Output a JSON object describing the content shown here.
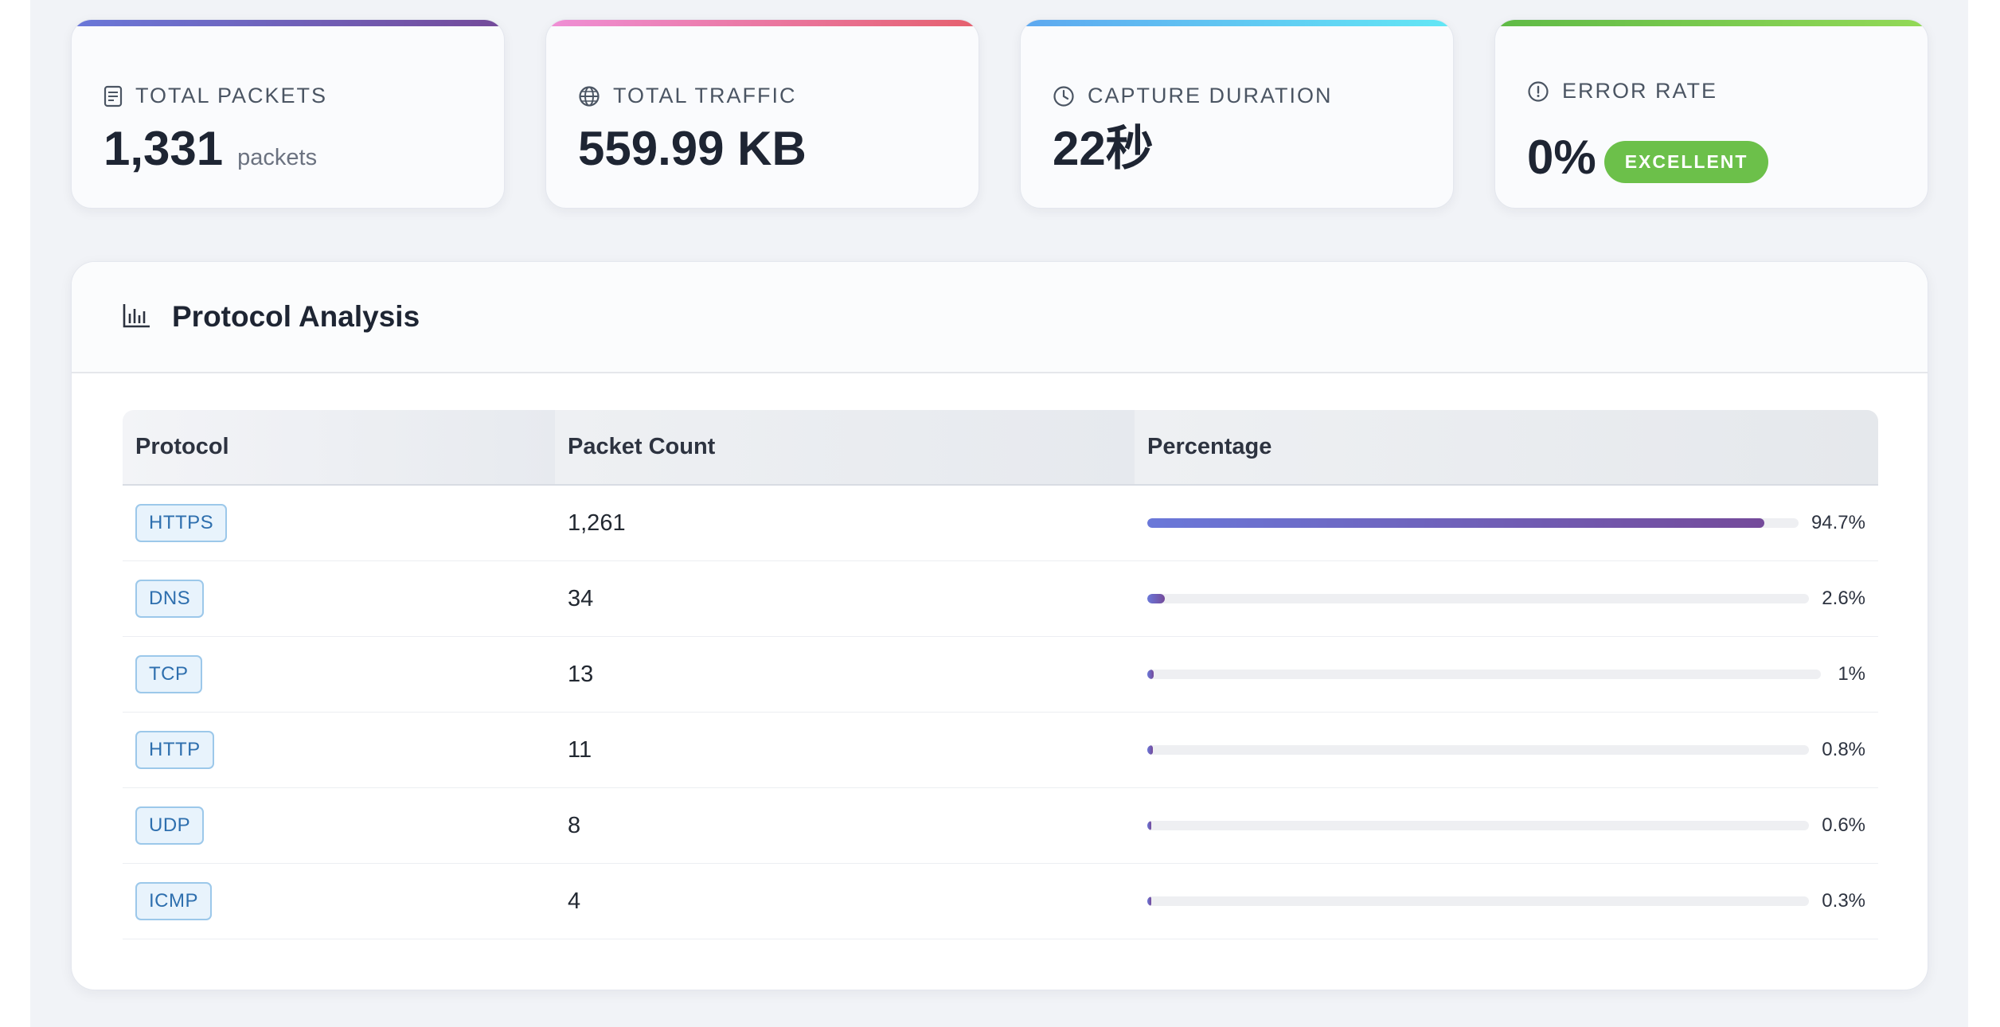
{
  "stats": [
    {
      "key": "total_packets",
      "label": "TOTAL PACKETS",
      "value": "1,331",
      "unit": "packets",
      "icon": "document-icon",
      "accent": [
        "#6a78d9",
        "#744a9a"
      ]
    },
    {
      "key": "total_traffic",
      "label": "TOTAL TRAFFIC",
      "value": "559.99 KB",
      "unit": "",
      "icon": "globe-icon",
      "accent": [
        "#ef8fd6",
        "#e5606e"
      ]
    },
    {
      "key": "capture_duration",
      "label": "CAPTURE DURATION",
      "value": "22秒",
      "unit": "",
      "icon": "clock-icon",
      "accent": [
        "#5ea8f0",
        "#62e7f5"
      ]
    },
    {
      "key": "error_rate",
      "label": "ERROR RATE",
      "value": "0%",
      "badge": "EXCELLENT",
      "icon": "alert-circle-icon",
      "accent": [
        "#5fba46",
        "#93d957"
      ],
      "badge_color": "#6cc04a"
    }
  ],
  "protocol_panel": {
    "title": "Protocol Analysis",
    "icon": "bar-chart-icon",
    "columns": [
      "Protocol",
      "Packet Count",
      "Percentage"
    ],
    "rows": [
      {
        "protocol": "HTTPS",
        "count": "1,261",
        "percentage": "94.7%",
        "fraction": 0.947
      },
      {
        "protocol": "DNS",
        "count": "34",
        "percentage": "2.6%",
        "fraction": 0.026
      },
      {
        "protocol": "TCP",
        "count": "13",
        "percentage": "1%",
        "fraction": 0.01
      },
      {
        "protocol": "HTTP",
        "count": "11",
        "percentage": "0.8%",
        "fraction": 0.008
      },
      {
        "protocol": "UDP",
        "count": "8",
        "percentage": "0.6%",
        "fraction": 0.006
      },
      {
        "protocol": "ICMP",
        "count": "4",
        "percentage": "0.3%",
        "fraction": 0.003
      }
    ]
  }
}
